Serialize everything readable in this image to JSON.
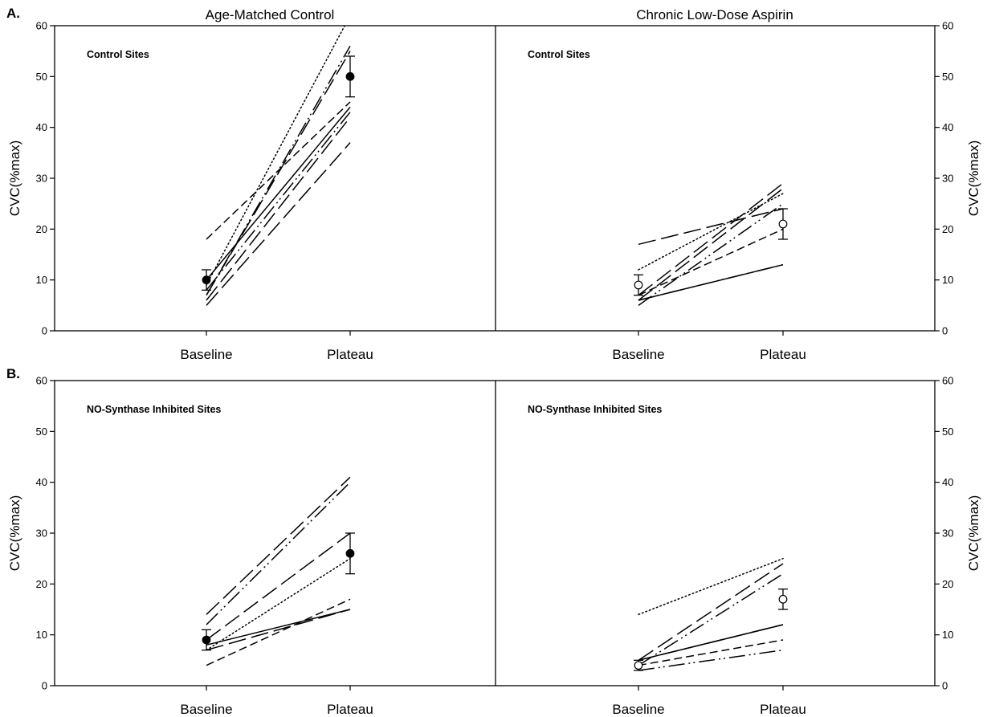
{
  "figure": {
    "column_titles": [
      "Age-Matched Control",
      "Chronic Low-Dose Aspirin"
    ],
    "ylabel": "CVC(%max)",
    "colors": {
      "ink": "#000000",
      "background": "#ffffff",
      "open_marker_fill": "#ffffff"
    }
  },
  "chart_data": [
    {
      "type": "line",
      "panel": "A.",
      "group": "Age-Matched Control",
      "annotation": "Control Sites",
      "categories": [
        "Baseline",
        "Plateau"
      ],
      "ylabel": "CVC(%max)",
      "ylim": [
        0,
        60
      ],
      "yticks": [
        0,
        10,
        20,
        30,
        40,
        50,
        60
      ],
      "y_axis_side": "left",
      "series": [
        {
          "style": "solid",
          "values": [
            10,
            44
          ]
        },
        {
          "style": "dotted",
          "values": [
            9,
            62
          ]
        },
        {
          "style": "long-dash",
          "values": [
            7,
            55
          ]
        },
        {
          "style": "long-dash",
          "values": [
            5,
            37
          ]
        },
        {
          "style": "dash",
          "values": [
            18,
            45
          ]
        },
        {
          "style": "dash-dot-dot",
          "values": [
            8,
            43
          ]
        },
        {
          "style": "long-dash",
          "values": [
            6,
            42
          ]
        },
        {
          "style": "dash-dot-dot",
          "values": [
            7,
            56
          ]
        }
      ],
      "mean": {
        "marker": "filled-circle",
        "values": [
          10,
          50
        ],
        "error": [
          2,
          4
        ]
      }
    },
    {
      "type": "line",
      "panel": "A.",
      "group": "Chronic Low-Dose Aspirin",
      "annotation": "Control Sites",
      "categories": [
        "Baseline",
        "Plateau"
      ],
      "ylabel": "CVC(%max)",
      "ylim": [
        0,
        60
      ],
      "yticks": [
        0,
        10,
        20,
        30,
        40,
        50,
        60
      ],
      "y_axis_side": "right",
      "series": [
        {
          "style": "solid",
          "values": [
            6,
            13
          ]
        },
        {
          "style": "dotted",
          "values": [
            12,
            27
          ]
        },
        {
          "style": "long-dash",
          "values": [
            17,
            24
          ]
        },
        {
          "style": "long-dash",
          "values": [
            6,
            28
          ]
        },
        {
          "style": "dash",
          "values": [
            7,
            20
          ]
        },
        {
          "style": "dash-dot-dot",
          "values": [
            5,
            25
          ]
        },
        {
          "style": "dash-dot-dot",
          "values": [
            6,
            13
          ]
        },
        {
          "style": "long-dash",
          "values": [
            7,
            29
          ]
        }
      ],
      "mean": {
        "marker": "open-circle",
        "values": [
          9,
          21
        ],
        "error": [
          2,
          3
        ]
      }
    },
    {
      "type": "line",
      "panel": "B.",
      "group": "Age-Matched Control",
      "annotation": "NO-Synthase Inhibited Sites",
      "categories": [
        "Baseline",
        "Plateau"
      ],
      "ylabel": "CVC(%max)",
      "ylim": [
        0,
        60
      ],
      "yticks": [
        0,
        10,
        20,
        30,
        40,
        50,
        60
      ],
      "y_axis_side": "left",
      "series": [
        {
          "style": "solid",
          "values": [
            8,
            15
          ]
        },
        {
          "style": "dotted",
          "values": [
            7,
            25
          ]
        },
        {
          "style": "long-dash",
          "values": [
            14,
            41
          ]
        },
        {
          "style": "dash",
          "values": [
            4,
            17
          ]
        },
        {
          "style": "long-dash",
          "values": [
            9,
            30
          ]
        },
        {
          "style": "dash-dot-dot",
          "values": [
            12,
            40
          ]
        },
        {
          "style": "long-dash",
          "values": [
            7,
            15
          ]
        }
      ],
      "mean": {
        "marker": "filled-circle",
        "values": [
          9,
          26
        ],
        "error": [
          2,
          4
        ]
      }
    },
    {
      "type": "line",
      "panel": "B.",
      "group": "Chronic Low-Dose Aspirin",
      "annotation": "NO-Synthase Inhibited Sites",
      "categories": [
        "Baseline",
        "Plateau"
      ],
      "ylabel": "CVC(%max)",
      "ylim": [
        0,
        60
      ],
      "yticks": [
        0,
        10,
        20,
        30,
        40,
        50,
        60
      ],
      "y_axis_side": "right",
      "series": [
        {
          "style": "solid",
          "values": [
            5,
            12
          ]
        },
        {
          "style": "dotted",
          "values": [
            14,
            25
          ]
        },
        {
          "style": "long-dash",
          "values": [
            5,
            24
          ]
        },
        {
          "style": "dash-dot-dot",
          "values": [
            4,
            22
          ]
        },
        {
          "style": "dash",
          "values": [
            4,
            9
          ]
        },
        {
          "style": "dash-dot-dot",
          "values": [
            3,
            7
          ]
        },
        {
          "style": "long-dash",
          "values": [
            5,
            12
          ]
        }
      ],
      "mean": {
        "marker": "open-circle",
        "values": [
          4,
          17
        ],
        "error": [
          1,
          2
        ]
      }
    }
  ]
}
